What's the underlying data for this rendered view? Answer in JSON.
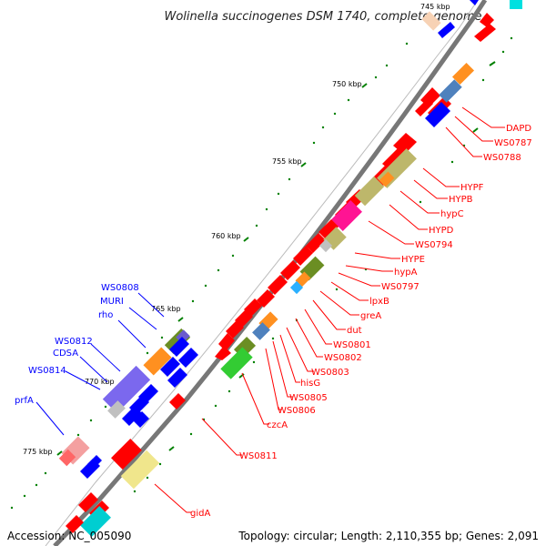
{
  "title": "Wolinella succinogenes DSM 1740, complete genome",
  "footer": {
    "accession": "Accession: NC_005090",
    "summary": "Topology: circular; Length: 2,110,355 bp; Genes: 2,091"
  },
  "ticks": [
    "745 kbp",
    "750 kbp",
    "755 kbp",
    "760 kbp",
    "765 kbp",
    "770 kbp",
    "775 kbp"
  ],
  "colors": {
    "backbone": "#777777",
    "forward_gene": "#ff0000",
    "reverse_gene": "#0000ff",
    "right_labels": "#ff0000",
    "left_labels": "#0000ff",
    "tick_marks": "#008000",
    "dots": "#008000"
  },
  "right_labels": [
    "DAPD",
    "WS0787",
    "WS0788",
    "HYPF",
    "HYPB",
    "hypC",
    "HYPD",
    "WS0794",
    "HYPE",
    "hypA",
    "WS0797",
    "lpxB",
    "greA",
    "dut",
    "WS0801",
    "WS0802",
    "WS0803",
    "hisG",
    "WS0805",
    "WS0806",
    "czcA",
    "WS0811",
    "gidA"
  ],
  "left_labels": [
    "WS0808",
    "MURI",
    "rho",
    "WS0812",
    "CDSA",
    "WS0814",
    "prfA"
  ]
}
